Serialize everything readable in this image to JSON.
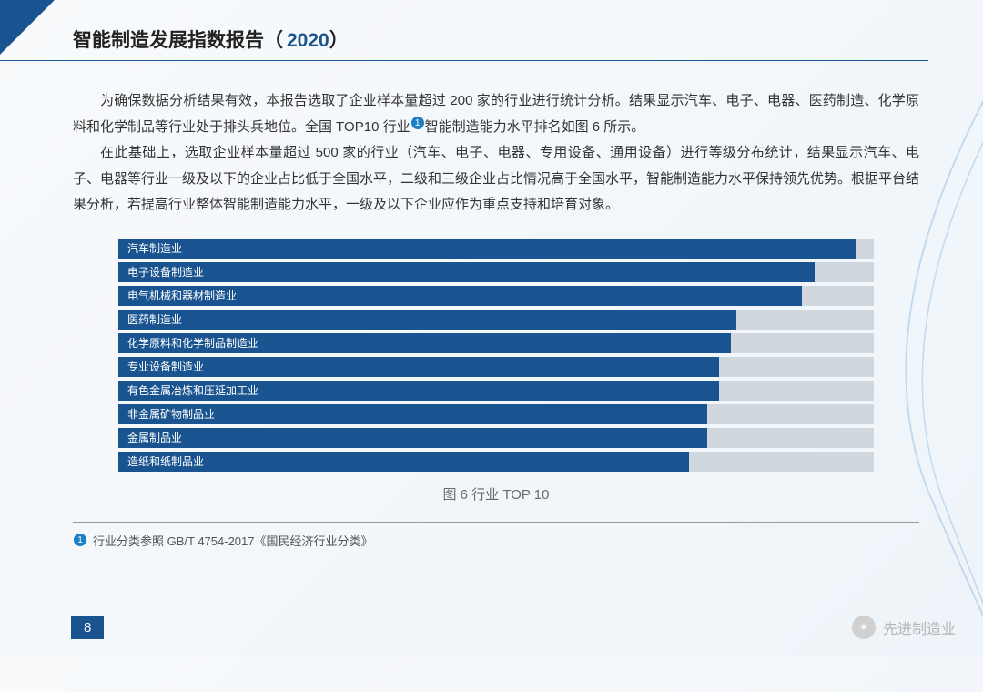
{
  "header": {
    "title": "智能制造发展指数报告（",
    "year": "2020",
    "close": "）"
  },
  "paragraphs": {
    "p1a": "为确保数据分析结果有效，本报告选取了企业样本量超过 200 家的行业进行统计分析。结果显示汽车、电子、电器、医药制造、化学原料和化学制品等行业处于排头兵地位。全国 TOP10 行业",
    "p1b": "智能制造能力水平排名如图 6 所示。",
    "p2": "在此基础上，选取企业样本量超过 500 家的行业（汽车、电子、电器、专用设备、通用设备）进行等级分布统计，结果显示汽车、电子、电器等行业一级及以下的企业占比低于全国水平，二级和三级企业占比情况高于全国水平，智能制造能力水平保持领先优势。根据平台结果分析，若提高行业整体智能制造能力水平，一级及以下企业应作为重点支持和培育对象。"
  },
  "chart": {
    "type": "bar",
    "caption": "图 6 行业 TOP 10",
    "label_bg": "#1a5490",
    "track_bg": "#d0d8de",
    "bar_fill": "#1a5490",
    "max": 100,
    "bars": [
      {
        "label": "汽车制造业",
        "value": 97
      },
      {
        "label": "电子设备制造业",
        "value": 90
      },
      {
        "label": "电气机械和器材制造业",
        "value": 88
      },
      {
        "label": "医药制造业",
        "value": 77
      },
      {
        "label": "化学原料和化学制品制造业",
        "value": 76
      },
      {
        "label": "专业设备制造业",
        "value": 74
      },
      {
        "label": "有色金属冶炼和压延加工业",
        "value": 74
      },
      {
        "label": "非金属矿物制品业",
        "value": 72
      },
      {
        "label": "金属制品业",
        "value": 72
      },
      {
        "label": "造纸和纸制品业",
        "value": 69
      }
    ]
  },
  "footnote": {
    "num": "1",
    "text": "行业分类参照 GB/T 4754-2017《国民经济行业分类》"
  },
  "page_number": "8",
  "watermark": "先进制造业"
}
